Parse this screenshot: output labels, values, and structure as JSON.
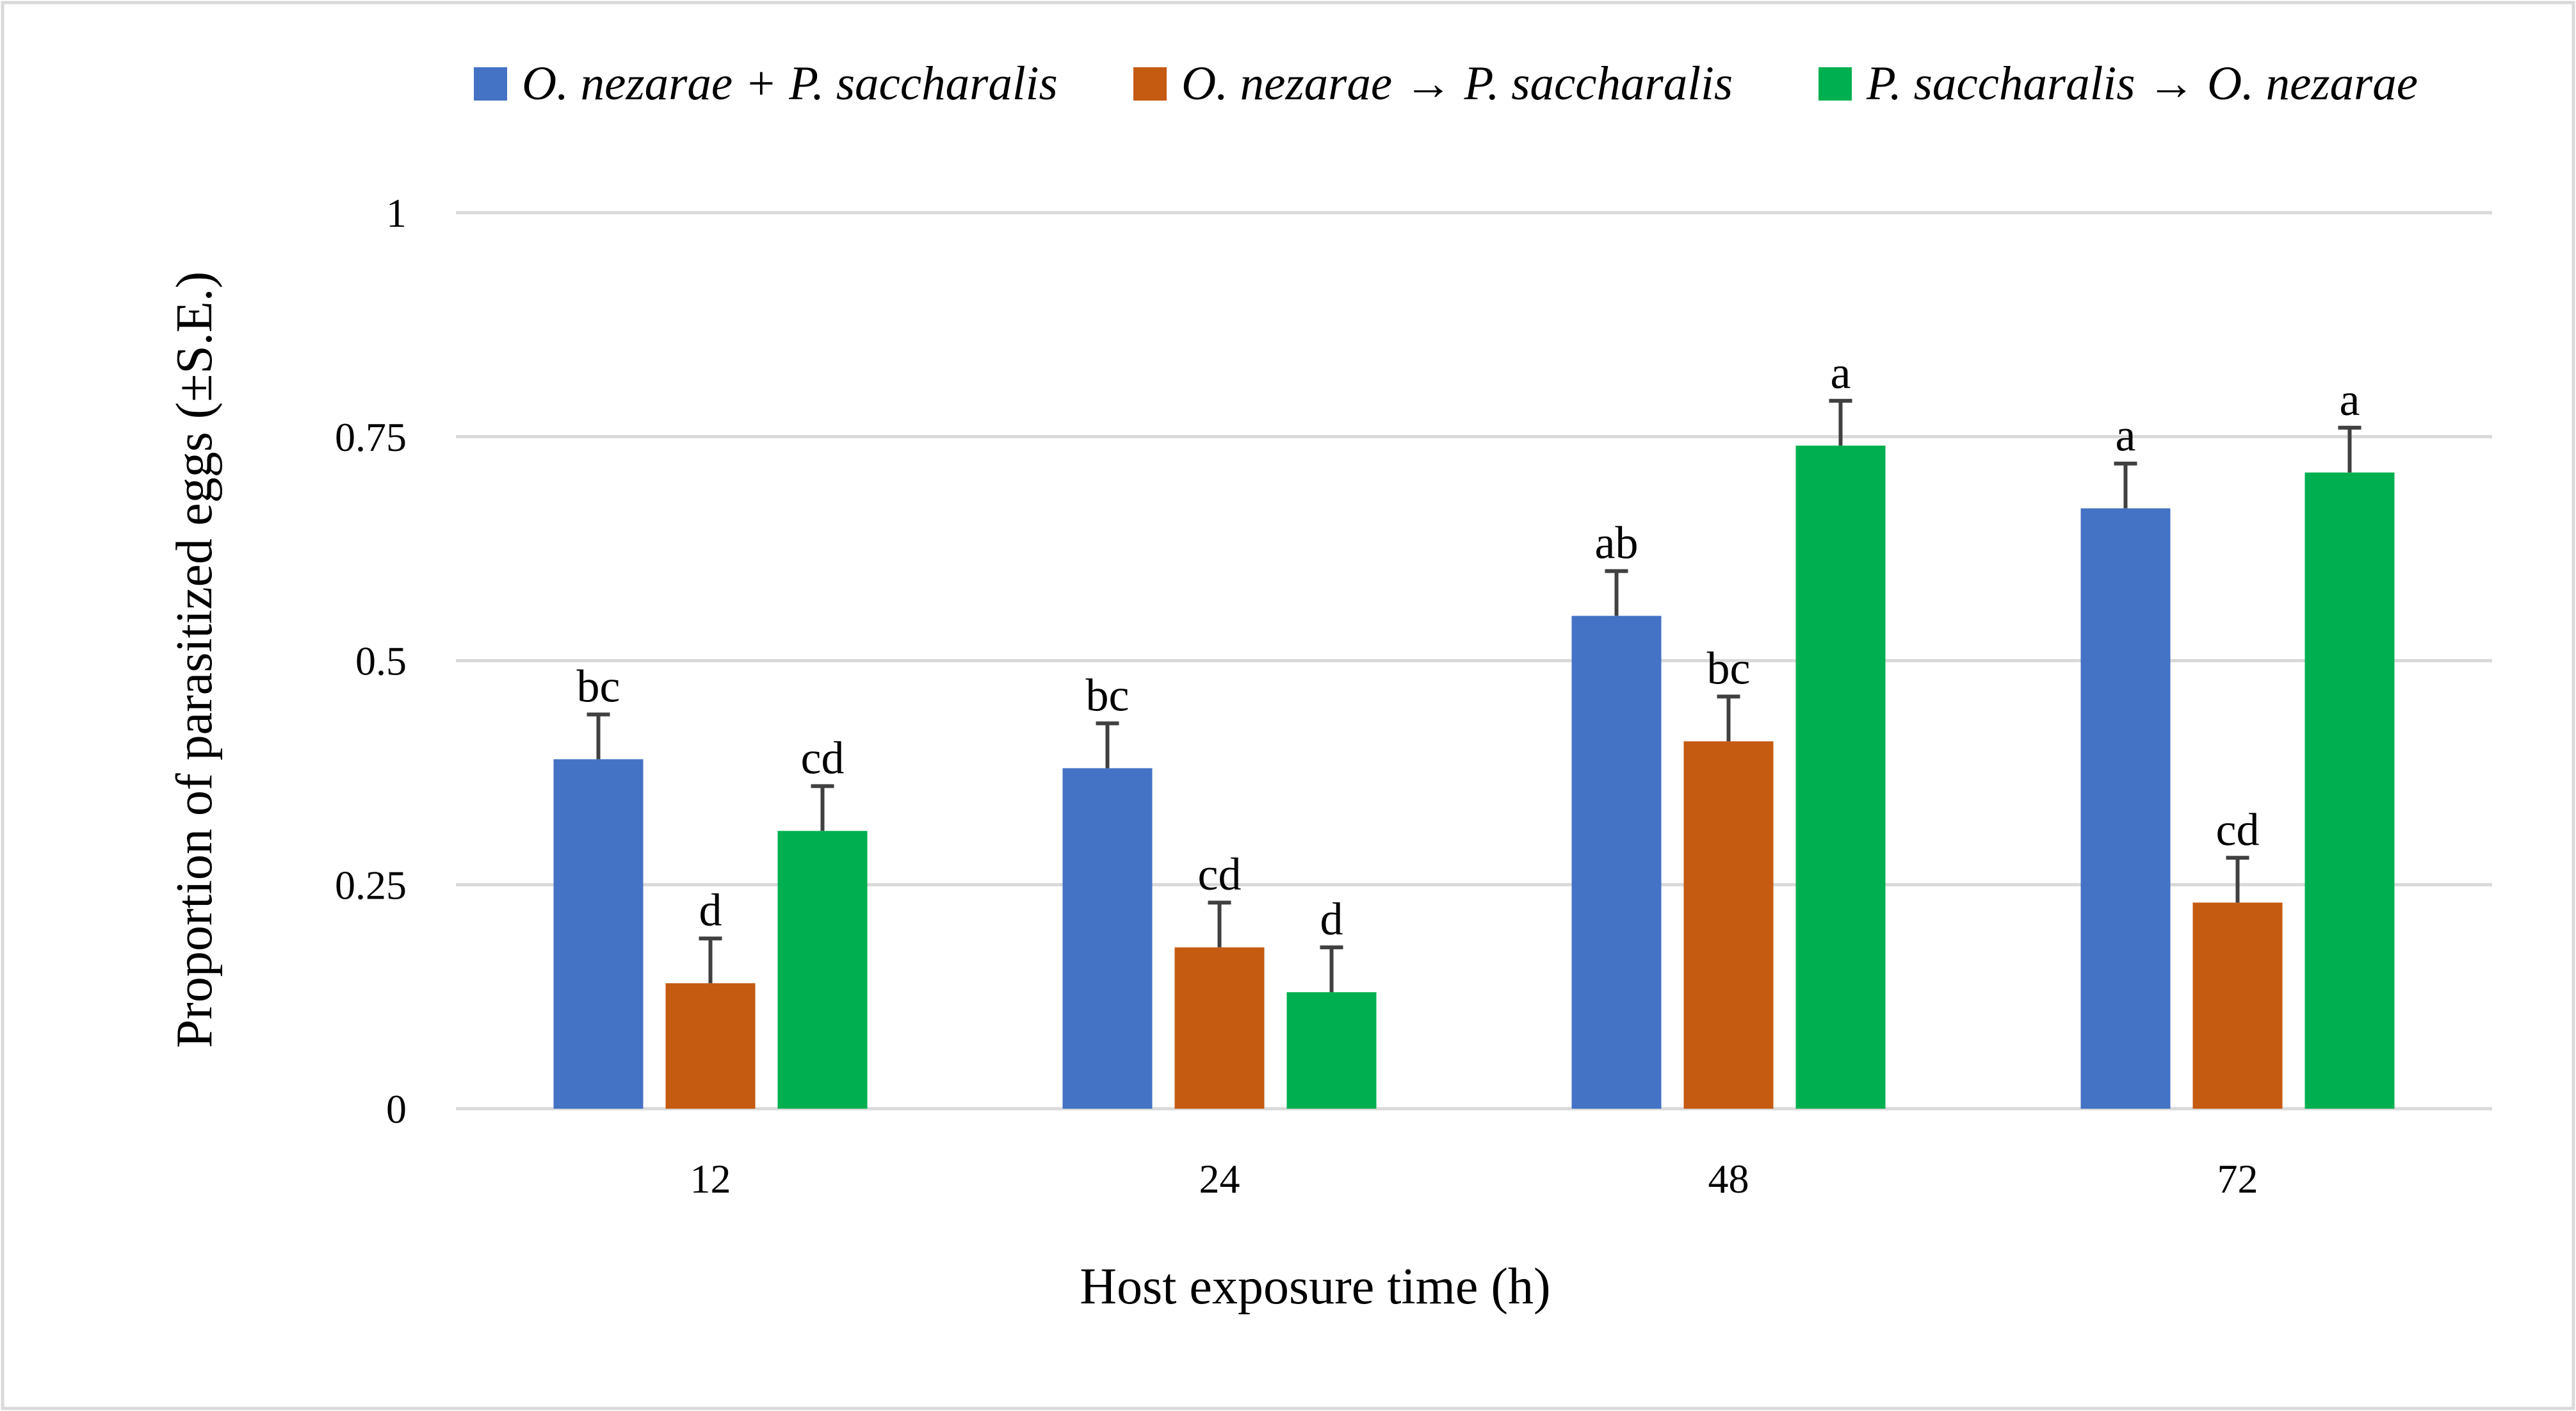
{
  "chart_data": {
    "type": "bar",
    "title": "",
    "xlabel": "Host exposure time (h)",
    "ylabel": "Proportion of parasitized eggs (±S.E.)",
    "ylim": [
      0,
      1
    ],
    "yticks": [
      0,
      0.25,
      0.5,
      0.75,
      1
    ],
    "ytick_labels": [
      "0",
      "0.25",
      "0.5",
      "0.75",
      "1"
    ],
    "grid": true,
    "legend_position": "top",
    "categories": [
      "12",
      "24",
      "48",
      "72"
    ],
    "series": [
      {
        "name": "O. nezarae + P. saccharalis",
        "color": "#4472C4",
        "values": [
          0.39,
          0.38,
          0.55,
          0.67
        ],
        "errors": [
          0.05,
          0.05,
          0.05,
          0.05
        ],
        "letters": [
          "bc",
          "bc",
          "ab",
          "a"
        ]
      },
      {
        "name": "O. nezarae → P. saccharalis",
        "color": "#C55A11",
        "values": [
          0.14,
          0.18,
          0.41,
          0.23
        ],
        "errors": [
          0.05,
          0.05,
          0.05,
          0.05
        ],
        "letters": [
          "d",
          "cd",
          "bc",
          "cd"
        ]
      },
      {
        "name": "P. saccharalis  → O. nezarae",
        "color": "#00B050",
        "values": [
          0.31,
          0.13,
          0.74,
          0.71
        ],
        "errors": [
          0.05,
          0.05,
          0.05,
          0.05
        ],
        "letters": [
          "cd",
          "d",
          "a",
          "a"
        ]
      }
    ],
    "colors": {
      "grid": "#d9d9d9",
      "error_bar": "#404040",
      "border": "#d9d9d9"
    }
  }
}
